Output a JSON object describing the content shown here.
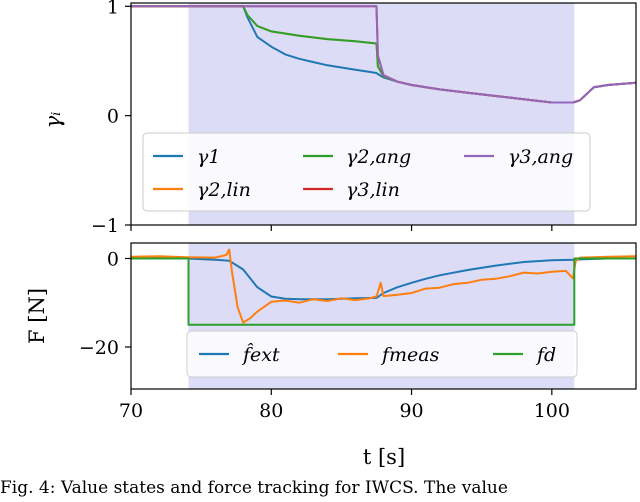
{
  "caption": "Fig. 4: Value states and force tracking for IWCS. The value",
  "chart_data": [
    {
      "type": "line",
      "ylabel": "γᵢ",
      "xlim": [
        70,
        106
      ],
      "ylim": [
        -1,
        1.03
      ],
      "yticks": [
        {
          "value": 1,
          "label": "1"
        },
        {
          "value": 0,
          "label": "0"
        },
        {
          "value": -1,
          "label": "−1"
        }
      ],
      "shaded_interval": {
        "x0": 74.1,
        "x1": 101.6,
        "color": "#dcdcf7"
      },
      "legend_placement": "lower-center",
      "series": [
        {
          "name": "γ1",
          "color": "#1f77b4",
          "x": [
            70,
            78,
            78.3,
            79,
            80,
            81,
            82,
            83,
            84,
            85,
            86,
            87,
            87.5,
            87.6,
            88,
            89,
            90,
            92,
            94,
            96,
            98,
            100,
            101.5,
            102,
            103,
            104,
            106
          ],
          "y": [
            1,
            1,
            0.9,
            0.72,
            0.63,
            0.56,
            0.52,
            0.49,
            0.46,
            0.44,
            0.42,
            0.4,
            0.39,
            0.38,
            0.35,
            0.31,
            0.28,
            0.24,
            0.21,
            0.18,
            0.15,
            0.12,
            0.12,
            0.14,
            0.26,
            0.28,
            0.3
          ]
        },
        {
          "name": "γ2,lin",
          "color": "#ff7f0e",
          "x": [
            70,
            78,
            78.3,
            79,
            80,
            82,
            84,
            86,
            87.5,
            87.6,
            88,
            89,
            90,
            92,
            94,
            96,
            98,
            100,
            101.5,
            102,
            103,
            104,
            106
          ],
          "y": [
            1,
            1,
            0.92,
            0.82,
            0.77,
            0.73,
            0.7,
            0.68,
            0.66,
            0.45,
            0.36,
            0.31,
            0.28,
            0.24,
            0.21,
            0.18,
            0.15,
            0.12,
            0.12,
            0.14,
            0.26,
            0.28,
            0.3
          ]
        },
        {
          "name": "γ2,ang",
          "color": "#2ca02c",
          "x": [
            70,
            78,
            78.3,
            79,
            80,
            82,
            84,
            86,
            87.5,
            87.6,
            88,
            89,
            90,
            92,
            94,
            96,
            98,
            100,
            101.5,
            102,
            103,
            104,
            106
          ],
          "y": [
            1,
            1,
            0.92,
            0.82,
            0.77,
            0.73,
            0.7,
            0.68,
            0.66,
            0.45,
            0.36,
            0.31,
            0.28,
            0.24,
            0.21,
            0.18,
            0.15,
            0.12,
            0.12,
            0.14,
            0.26,
            0.28,
            0.3
          ]
        },
        {
          "name": "γ3,lin",
          "color": "#d62728",
          "x": [
            70,
            87.5,
            87.6,
            88,
            89,
            90,
            92,
            94,
            96,
            98,
            100,
            101.5,
            102,
            103,
            104,
            106
          ],
          "y": [
            1,
            1,
            0.55,
            0.37,
            0.31,
            0.28,
            0.24,
            0.21,
            0.18,
            0.15,
            0.12,
            0.12,
            0.14,
            0.26,
            0.28,
            0.3
          ]
        },
        {
          "name": "γ3,ang",
          "color": "#9467bd",
          "x": [
            70,
            87.5,
            87.6,
            88,
            89,
            90,
            92,
            94,
            96,
            98,
            100,
            101.5,
            102,
            103,
            104,
            106
          ],
          "y": [
            1,
            1,
            0.55,
            0.37,
            0.31,
            0.28,
            0.24,
            0.21,
            0.18,
            0.15,
            0.12,
            0.12,
            0.14,
            0.26,
            0.28,
            0.3
          ]
        }
      ]
    },
    {
      "type": "line",
      "xlabel": "t [s]",
      "ylabel": "F [N]",
      "xlim": [
        70,
        106
      ],
      "ylim": [
        -29.5,
        3.5
      ],
      "xticks": [
        {
          "value": 70,
          "label": "70"
        },
        {
          "value": 80,
          "label": "80"
        },
        {
          "value": 90,
          "label": "90"
        },
        {
          "value": 100,
          "label": "100"
        }
      ],
      "yticks": [
        {
          "value": 0,
          "label": "0"
        },
        {
          "value": -20,
          "label": "−20"
        }
      ],
      "shaded_interval": {
        "x0": 74.1,
        "x1": 101.6,
        "color": "#dcdcf7"
      },
      "legend_placement": "lower-center",
      "series": [
        {
          "name": "f̂ext",
          "color": "#1f77b4",
          "x": [
            70,
            74,
            76,
            77,
            78,
            79,
            80,
            81,
            82,
            84,
            86,
            87.5,
            88,
            89,
            90,
            91,
            92,
            94,
            96,
            98,
            100,
            101.6,
            102,
            104,
            106
          ],
          "y": [
            0.3,
            0,
            -0.3,
            -0.5,
            -2.5,
            -6.5,
            -8.6,
            -9.1,
            -9.2,
            -9.2,
            -9.0,
            -8.9,
            -7.8,
            -6.5,
            -5.5,
            -4.6,
            -3.8,
            -2.6,
            -1.6,
            -0.8,
            -0.4,
            -0.3,
            -0.2,
            0,
            0
          ]
        },
        {
          "name": "fmeas",
          "color": "#ff7f0e",
          "x": [
            70,
            72,
            74,
            76,
            76.8,
            77,
            77.2,
            77.6,
            78,
            78.5,
            79,
            80,
            81,
            82,
            83,
            84,
            85,
            86,
            87,
            87.5,
            87.8,
            88,
            89,
            90,
            91,
            92,
            93,
            94,
            95,
            96,
            97,
            98,
            99,
            100,
            101,
            101.5,
            101.7,
            102,
            103,
            104,
            106
          ],
          "y": [
            0.4,
            0.5,
            0.3,
            0.2,
            0.8,
            2.0,
            -3.0,
            -11.0,
            -14.5,
            -13.5,
            -12.0,
            -9.8,
            -9.5,
            -10.0,
            -9.2,
            -9.6,
            -9.0,
            -9.4,
            -9.0,
            -8.6,
            -5.5,
            -8.5,
            -8.2,
            -7.8,
            -6.8,
            -6.6,
            -5.8,
            -5.5,
            -4.8,
            -4.6,
            -4.0,
            -3.2,
            -3.4,
            -3.0,
            -2.8,
            -4.5,
            -0.6,
            0.2,
            0.3,
            0.4,
            0.5
          ]
        },
        {
          "name": "fd",
          "color": "#2ca02c",
          "x": [
            70,
            74.1,
            74.1,
            101.6,
            101.6,
            106
          ],
          "y": [
            0,
            0,
            -15,
            -15,
            0,
            0
          ]
        }
      ]
    }
  ]
}
